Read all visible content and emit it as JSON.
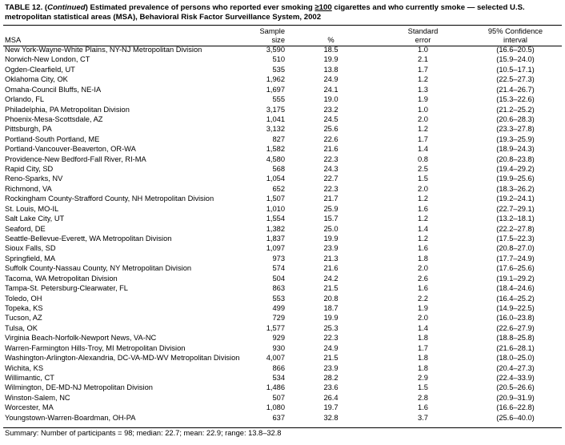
{
  "title": {
    "parts": [
      "TABLE 12. (",
      "Continued",
      ") Estimated prevalence of persons who reported ever smoking ",
      "≥100",
      " cigarettes and who currently smoke — selected U.S. metropolitan statistical areas (MSA), Behavioral Risk Factor Surveillance System, 2002"
    ]
  },
  "table": {
    "headers": [
      [
        "MSA"
      ],
      [
        "Sample",
        "size"
      ],
      [
        "%"
      ],
      [
        "Standard",
        "error"
      ],
      [
        "95% Confidence",
        "interval"
      ]
    ],
    "rows": [
      [
        "New York-Wayne-White Plains, NY-NJ Metropolitan Division",
        "3,590",
        "18.5",
        "1.0",
        "(16.6–20.5)"
      ],
      [
        "Norwich-New London, CT",
        "510",
        "19.9",
        "2.1",
        "(15.9–24.0)"
      ],
      [
        "Ogden-Clearfield, UT",
        "535",
        "13.8",
        "1.7",
        "(10.5–17.1)"
      ],
      [
        "Oklahoma City, OK",
        "1,962",
        "24.9",
        "1.2",
        "(22.5–27.3)"
      ],
      [
        "Omaha-Council Bluffs, NE-IA",
        "1,697",
        "24.1",
        "1.3",
        "(21.4–26.7)"
      ],
      [
        "Orlando, FL",
        "555",
        "19.0",
        "1.9",
        "(15.3–22.6)"
      ],
      [
        "Philadelphia, PA Metropolitan Division",
        "3,175",
        "23.2",
        "1.0",
        "(21.2–25.2)"
      ],
      [
        "Phoenix-Mesa-Scottsdale, AZ",
        "1,041",
        "24.5",
        "2.0",
        "(20.6–28.3)"
      ],
      [
        "Pittsburgh, PA",
        "3,132",
        "25.6",
        "1.2",
        "(23.3–27.8)"
      ],
      [
        "Portland-South Portland, ME",
        "827",
        "22.6",
        "1.7",
        "(19.3–25.9)"
      ],
      [
        "Portland-Vancouver-Beaverton, OR-WA",
        "1,582",
        "21.6",
        "1.4",
        "(18.9–24.3)"
      ],
      [
        "Providence-New Bedford-Fall River, RI-MA",
        "4,580",
        "22.3",
        "0.8",
        "(20.8–23.8)"
      ],
      [
        "Rapid City, SD",
        "568",
        "24.3",
        "2.5",
        "(19.4–29.2)"
      ],
      [
        "Reno-Sparks, NV",
        "1,054",
        "22.7",
        "1.5",
        "(19.9–25.6)"
      ],
      [
        "Richmond, VA",
        "652",
        "22.3",
        "2.0",
        "(18.3–26.2)"
      ],
      [
        "Rockingham County-Strafford County, NH Metropolitan Division",
        "1,507",
        "21.7",
        "1.2",
        "(19.2–24.1)"
      ],
      [
        "St. Louis, MO-IL",
        "1,010",
        "25.9",
        "1.6",
        "(22.7–29.1)"
      ],
      [
        "Salt Lake City, UT",
        "1,554",
        "15.7",
        "1.2",
        "(13.2–18.1)"
      ],
      [
        "Seaford, DE",
        "1,382",
        "25.0",
        "1.4",
        "(22.2–27.8)"
      ],
      [
        "Seattle-Bellevue-Everett, WA Metropolitan Division",
        "1,837",
        "19.9",
        "1.2",
        "(17.5–22.3)"
      ],
      [
        "Sioux Falls, SD",
        "1,097",
        "23.9",
        "1.6",
        "(20.8–27.0)"
      ],
      [
        "Springfield, MA",
        "973",
        "21.3",
        "1.8",
        "(17.7–24.9)"
      ],
      [
        "Suffolk County-Nassau County, NY Metropolitan Division",
        "574",
        "21.6",
        "2.0",
        "(17.6–25.6)"
      ],
      [
        "Tacoma, WA Metropolitan Division",
        "504",
        "24.2",
        "2.6",
        "(19.1–29.2)"
      ],
      [
        "Tampa-St. Petersburg-Clearwater, FL",
        "863",
        "21.5",
        "1.6",
        "(18.4–24.6)"
      ],
      [
        "Toledo, OH",
        "553",
        "20.8",
        "2.2",
        "(16.4–25.2)"
      ],
      [
        "Topeka, KS",
        "499",
        "18.7",
        "1.9",
        "(14.9–22.5)"
      ],
      [
        "Tucson, AZ",
        "729",
        "19.9",
        "2.0",
        "(16.0–23.8)"
      ],
      [
        "Tulsa, OK",
        "1,577",
        "25.3",
        "1.4",
        "(22.6–27.9)"
      ],
      [
        "Virginia Beach-Norfolk-Newport News, VA-NC",
        "929",
        "22.3",
        "1.8",
        "(18.8–25.8)"
      ],
      [
        "Warren-Farmington Hills-Troy, MI Metropolitan Division",
        "930",
        "24.9",
        "1.7",
        "(21.6–28.1)"
      ],
      [
        "Washington-Arlington-Alexandria, DC-VA-MD-WV Metropolitan Division",
        "4,007",
        "21.5",
        "1.8",
        "(18.0–25.0)"
      ],
      [
        "Wichita, KS",
        "866",
        "23.9",
        "1.8",
        "(20.4–27.3)"
      ],
      [
        "Willimantic, CT",
        "534",
        "28.2",
        "2.9",
        "(22.4–33.9)"
      ],
      [
        "Wilmington, DE-MD-NJ Metropolitan Division",
        "1,486",
        "23.6",
        "1.5",
        "(20.5–26.6)"
      ],
      [
        "Winston-Salem, NC",
        "507",
        "26.4",
        "2.8",
        "(20.9–31.9)"
      ],
      [
        "Worcester, MA",
        "1,080",
        "19.7",
        "1.6",
        "(16.6–22.8)"
      ],
      [
        "Youngstown-Warren-Boardman, OH-PA",
        "637",
        "32.8",
        "3.7",
        "(25.6–40.0)"
      ]
    ]
  },
  "footer": "Summary: Number of participants = 98; median: 22.7; mean: 22.9; range: 13.8–32.8"
}
